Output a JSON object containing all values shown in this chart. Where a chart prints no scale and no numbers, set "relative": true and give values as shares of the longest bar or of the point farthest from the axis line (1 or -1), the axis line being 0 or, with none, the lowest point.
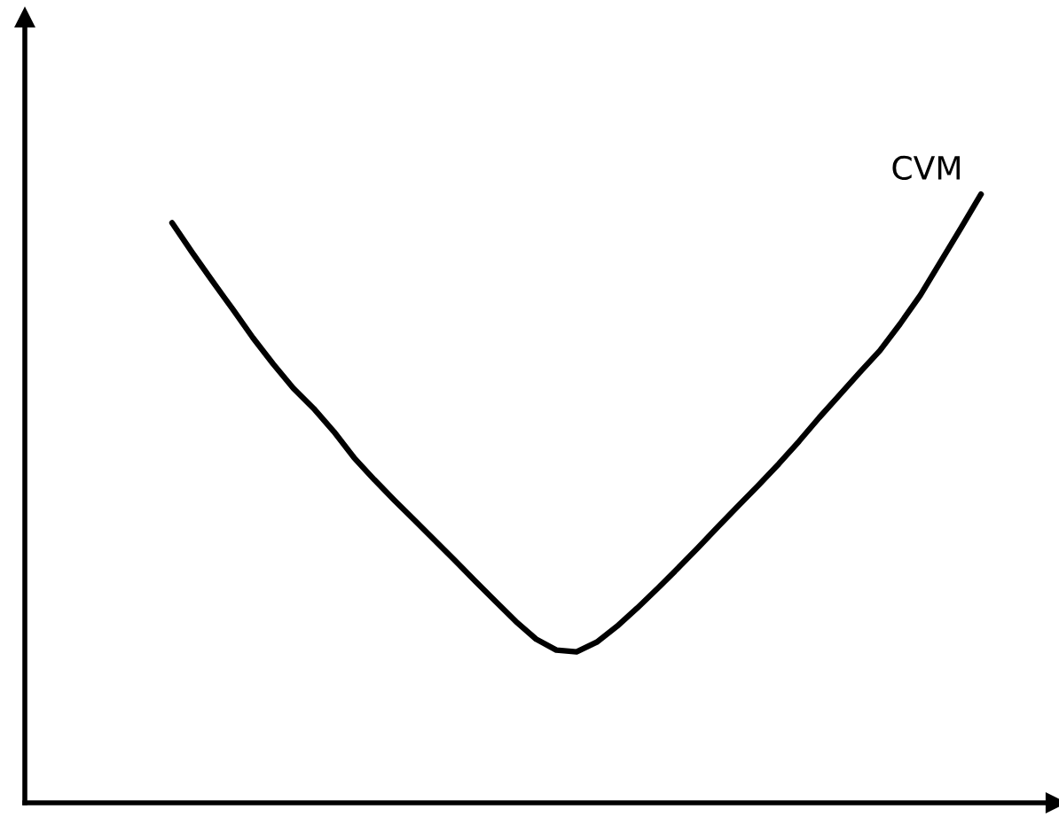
{
  "chart_data": {
    "type": "line",
    "relative": true,
    "categories": [
      null,
      null,
      null,
      null,
      null,
      null,
      null,
      null,
      null,
      null,
      null,
      null,
      null,
      null,
      null,
      null,
      null,
      null,
      null,
      null,
      null,
      null,
      null,
      null,
      null,
      null,
      null,
      null,
      null,
      null,
      null,
      null,
      null,
      null,
      null,
      null,
      null,
      null,
      null,
      null,
      null
    ],
    "series": [
      {
        "name": "CVM",
        "color": "#000000",
        "values": [
          0.953,
          0.904,
          0.857,
          0.811,
          0.764,
          0.721,
          0.681,
          0.648,
          0.61,
          0.567,
          0.531,
          0.497,
          0.464,
          0.431,
          0.398,
          0.364,
          0.331,
          0.298,
          0.269,
          0.251,
          0.248,
          0.264,
          0.29,
          0.32,
          0.352,
          0.385,
          0.419,
          0.454,
          0.488,
          0.522,
          0.557,
          0.594,
          0.633,
          0.67,
          0.707,
          0.743,
          0.787,
          0.834,
          0.889,
          0.944,
          1.0
        ]
      }
    ]
  }
}
